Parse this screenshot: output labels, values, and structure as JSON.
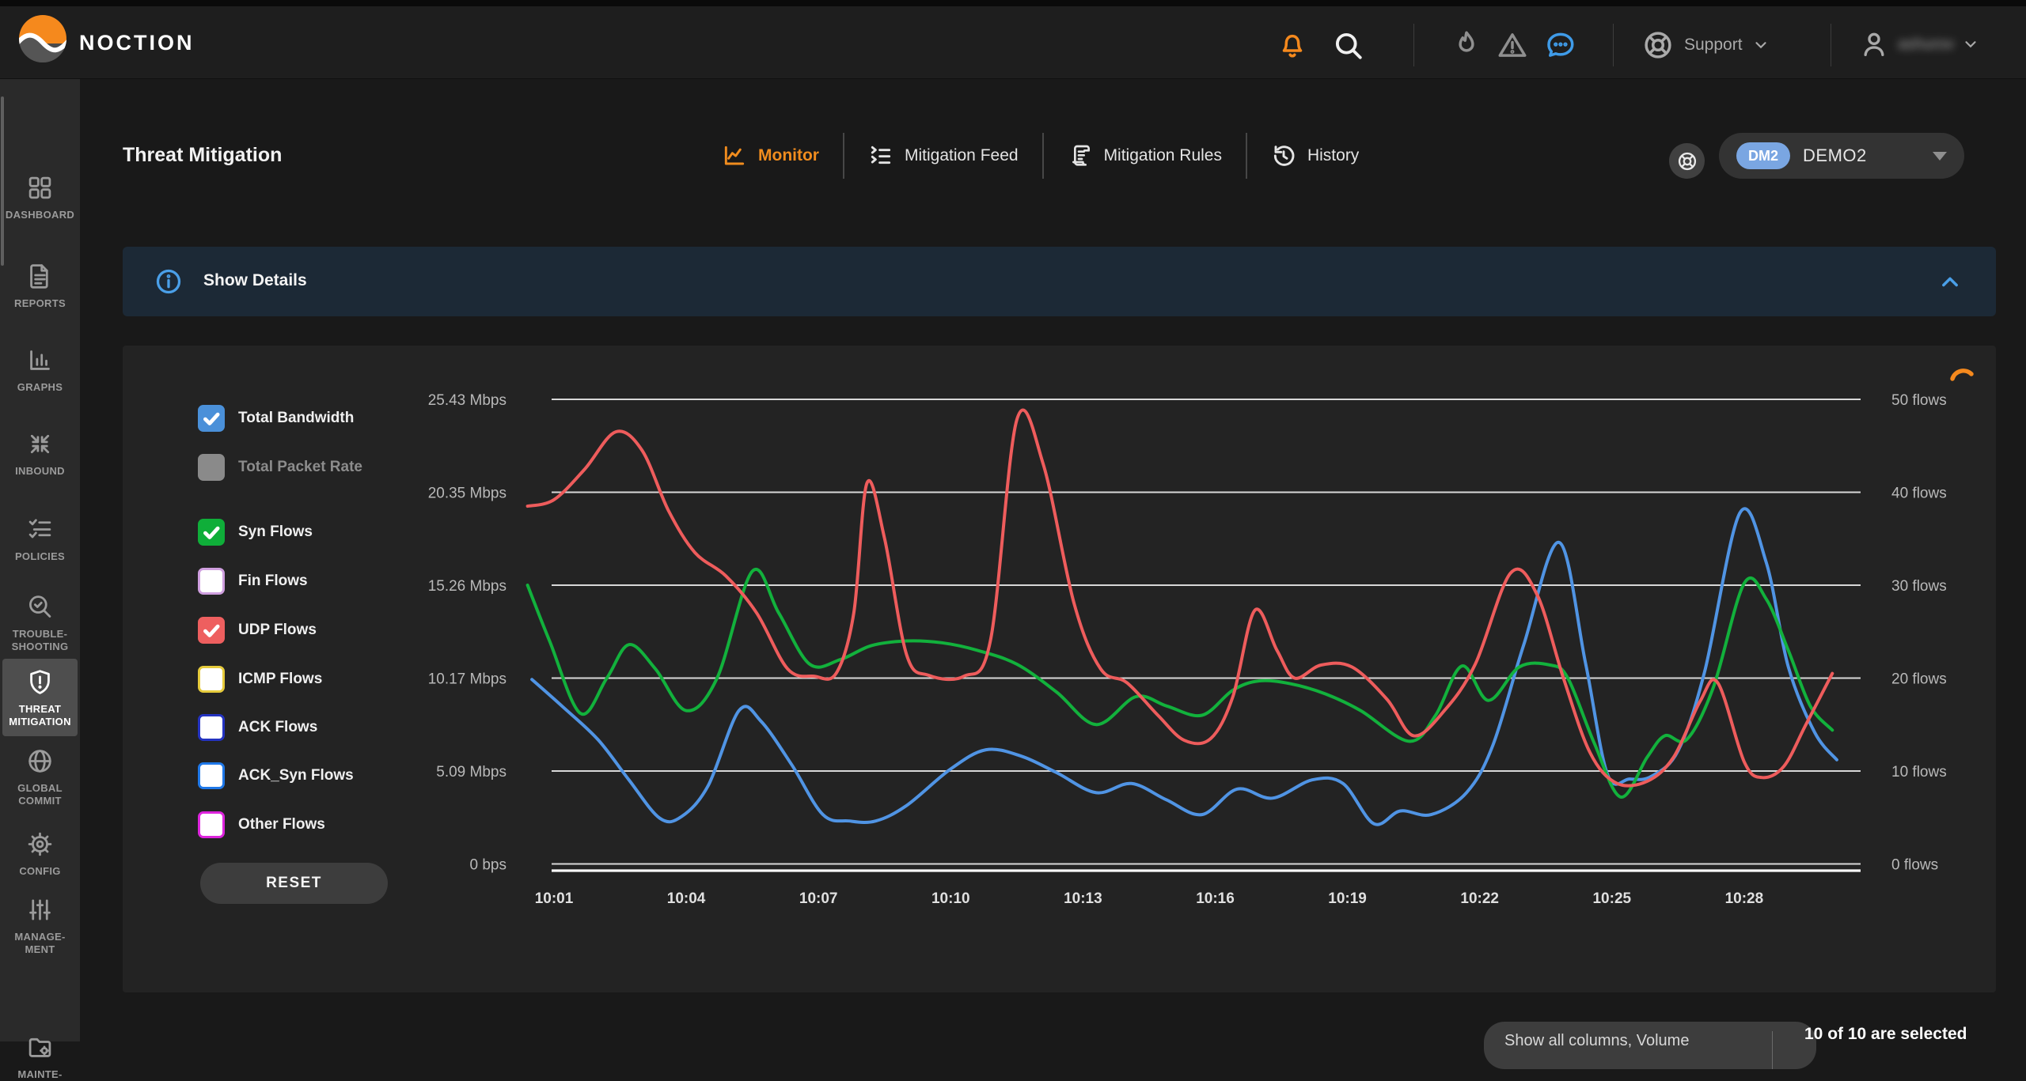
{
  "topbar": {
    "brand": "NOCTION",
    "icons": [
      "bell-icon",
      "search-icon",
      "flame-icon",
      "warning-icon",
      "chat-icon"
    ],
    "support_label": "Support",
    "user_name": "ashurov",
    "accent_orange": "#f5891d",
    "chat_blue": "#3f9be8"
  },
  "sidebar": {
    "items": [
      {
        "icon": "grid-icon",
        "label_lines": [
          "DASHBOARD"
        ],
        "active": false
      },
      {
        "icon": "report-icon",
        "label_lines": [
          "REPORTS"
        ],
        "active": false
      },
      {
        "icon": "bar-chart-icon",
        "label_lines": [
          "GRAPHS"
        ],
        "active": false
      },
      {
        "icon": "inbound-arrows-icon",
        "label_lines": [
          "INBOUND"
        ],
        "active": false
      },
      {
        "icon": "checklist-icon",
        "label_lines": [
          "POLICIES"
        ],
        "active": false
      },
      {
        "icon": "search-check-icon",
        "label_lines": [
          "TROUBLE-",
          "SHOOTING"
        ],
        "active": false
      },
      {
        "icon": "shield-alert-icon",
        "label_lines": [
          "THREAT",
          "MITIGATION"
        ],
        "active": true
      },
      {
        "icon": "globe-icon",
        "label_lines": [
          "GLOBAL",
          "COMMIT"
        ],
        "active": false
      },
      {
        "icon": "gear-icon",
        "label_lines": [
          "CONFIG"
        ],
        "active": false
      },
      {
        "icon": "sliders-icon",
        "label_lines": [
          "MANAGE-",
          "MENT"
        ],
        "active": false
      },
      {
        "icon": "folder-gear-icon",
        "label_lines": [
          "MAINTE-"
        ],
        "active": false
      }
    ]
  },
  "header": {
    "title": "Threat Mitigation",
    "tabs": [
      {
        "label": "Monitor",
        "icon": "monitor-chart-icon",
        "active": true
      },
      {
        "label": "Mitigation Feed",
        "icon": "feed-list-icon",
        "active": false
      },
      {
        "label": "Mitigation Rules",
        "icon": "rules-scroll-icon",
        "active": false
      },
      {
        "label": "History",
        "icon": "history-clock-icon",
        "active": false
      }
    ],
    "device": {
      "badge": "DM2",
      "name": "DEMO2"
    },
    "active_tab_color": "#f08c1e"
  },
  "details_bar": {
    "label": "Show Details",
    "accent": "#4a9fe8",
    "state": "expanded"
  },
  "legend": {
    "items": [
      {
        "label": "Total Bandwidth",
        "checked": true,
        "style": "fill",
        "color": "#4a90d9"
      },
      {
        "label": "Total Packet Rate",
        "checked": false,
        "style": "muted",
        "color": "#8a8a8a"
      },
      {
        "label": "Syn Flows",
        "checked": true,
        "style": "fill",
        "color": "#0fae39"
      },
      {
        "label": "Fin Flows",
        "checked": false,
        "style": "outline",
        "color": "#cf9fdf"
      },
      {
        "label": "UDP Flows",
        "checked": true,
        "style": "fill",
        "color": "#ee5f5f"
      },
      {
        "label": "ICMP Flows",
        "checked": false,
        "style": "outline",
        "color": "#e6cb3c"
      },
      {
        "label": "ACK Flows",
        "checked": false,
        "style": "outline",
        "color": "#2433c0"
      },
      {
        "label": "ACK_Syn Flows",
        "checked": false,
        "style": "outline",
        "color": "#1f78e8"
      },
      {
        "label": "Other Flows",
        "checked": false,
        "style": "outline",
        "color": "#dd25dd"
      }
    ],
    "reset_label": "RESET"
  },
  "chart_data": {
    "type": "line",
    "grid": true,
    "x_axis": {
      "tick_labels": [
        "10:01",
        "10:04",
        "10:07",
        "10:10",
        "10:13",
        "10:16",
        "10:19",
        "10:22",
        "10:25",
        "10:28"
      ],
      "tick_minutes": [
        1,
        4,
        7,
        10,
        13,
        16,
        19,
        22,
        25,
        28
      ],
      "range_minutes": [
        0.4,
        30.2
      ]
    },
    "left_axis": {
      "unit": "Mbps",
      "labels": [
        "25.43 Mbps",
        "20.35 Mbps",
        "15.26 Mbps",
        "10.17 Mbps",
        "5.09 Mbps",
        "0 bps"
      ],
      "values": [
        25.43,
        20.35,
        15.26,
        10.17,
        5.09,
        0
      ]
    },
    "right_axis": {
      "unit": "flows",
      "labels": [
        "50 flows",
        "40 flows",
        "30 flows",
        "20 flows",
        "10 flows",
        "0 flows"
      ],
      "values": [
        50,
        40,
        30,
        20,
        10,
        0
      ]
    },
    "series": [
      {
        "name": "Total Bandwidth",
        "axis": "left",
        "unit": "Mbps",
        "color": "#5094e4",
        "points": [
          [
            0.5,
            10.1
          ],
          [
            1.2,
            8.6
          ],
          [
            2.0,
            6.8
          ],
          [
            2.7,
            4.6
          ],
          [
            3.4,
            2.5
          ],
          [
            3.9,
            2.6
          ],
          [
            4.5,
            4.3
          ],
          [
            5.2,
            8.4
          ],
          [
            5.7,
            7.8
          ],
          [
            6.4,
            5.4
          ],
          [
            7.1,
            2.7
          ],
          [
            7.7,
            2.35
          ],
          [
            8.3,
            2.35
          ],
          [
            9.0,
            3.2
          ],
          [
            10.0,
            5.2
          ],
          [
            10.8,
            6.25
          ],
          [
            11.6,
            5.9
          ],
          [
            12.4,
            5.0
          ],
          [
            13.3,
            3.9
          ],
          [
            14.1,
            4.4
          ],
          [
            14.9,
            3.5
          ],
          [
            15.7,
            2.7
          ],
          [
            16.5,
            4.1
          ],
          [
            17.3,
            3.6
          ],
          [
            18.2,
            4.6
          ],
          [
            18.9,
            4.4
          ],
          [
            19.6,
            2.2
          ],
          [
            20.2,
            2.9
          ],
          [
            20.9,
            2.7
          ],
          [
            21.7,
            3.9
          ],
          [
            22.3,
            6.5
          ],
          [
            23.0,
            12.0
          ],
          [
            23.8,
            17.6
          ],
          [
            24.4,
            11.0
          ],
          [
            24.9,
            4.9
          ],
          [
            25.4,
            4.65
          ],
          [
            25.9,
            4.8
          ],
          [
            26.5,
            6.2
          ],
          [
            27.1,
            10.5
          ],
          [
            27.9,
            19.2
          ],
          [
            28.5,
            16.5
          ],
          [
            29.0,
            10.8
          ],
          [
            29.6,
            7.2
          ],
          [
            30.1,
            5.7
          ]
        ]
      },
      {
        "name": "Syn Flows",
        "axis": "right",
        "unit": "flows",
        "color": "#12b13c",
        "points": [
          [
            0.4,
            30.0
          ],
          [
            0.9,
            24.0
          ],
          [
            1.6,
            16.2
          ],
          [
            2.2,
            20.0
          ],
          [
            2.7,
            23.6
          ],
          [
            3.3,
            21.0
          ],
          [
            4.0,
            16.5
          ],
          [
            4.7,
            20.0
          ],
          [
            5.5,
            31.5
          ],
          [
            6.1,
            27.0
          ],
          [
            6.8,
            21.5
          ],
          [
            7.5,
            22.0
          ],
          [
            8.2,
            23.5
          ],
          [
            9.0,
            24.0
          ],
          [
            9.8,
            23.8
          ],
          [
            10.6,
            23.0
          ],
          [
            11.5,
            21.5
          ],
          [
            12.4,
            18.5
          ],
          [
            13.3,
            15.0
          ],
          [
            14.2,
            18.0
          ],
          [
            14.9,
            17.0
          ],
          [
            15.7,
            16.0
          ],
          [
            16.4,
            18.7
          ],
          [
            17.0,
            19.7
          ],
          [
            17.7,
            19.4
          ],
          [
            18.5,
            18.3
          ],
          [
            19.3,
            16.5
          ],
          [
            20.4,
            13.2
          ],
          [
            21.0,
            16.0
          ],
          [
            21.6,
            21.3
          ],
          [
            22.2,
            17.6
          ],
          [
            22.9,
            21.2
          ],
          [
            23.6,
            21.4
          ],
          [
            24.0,
            20.0
          ],
          [
            24.6,
            13.0
          ],
          [
            25.2,
            7.2
          ],
          [
            25.8,
            11.5
          ],
          [
            26.2,
            13.8
          ],
          [
            26.7,
            13.4
          ],
          [
            27.3,
            19.0
          ],
          [
            28.0,
            30.2
          ],
          [
            28.5,
            28.5
          ],
          [
            29.0,
            23.0
          ],
          [
            29.5,
            17.0
          ],
          [
            30.0,
            14.4
          ]
        ]
      },
      {
        "name": "UDP Flows",
        "axis": "right",
        "unit": "flows",
        "color": "#ee5c5c",
        "points": [
          [
            0.4,
            38.5
          ],
          [
            1.0,
            39.2
          ],
          [
            1.7,
            42.5
          ],
          [
            2.4,
            46.5
          ],
          [
            3.0,
            44.5
          ],
          [
            3.6,
            38.0
          ],
          [
            4.2,
            33.5
          ],
          [
            4.9,
            31.0
          ],
          [
            5.6,
            27.0
          ],
          [
            6.3,
            21.0
          ],
          [
            6.9,
            20.2
          ],
          [
            7.4,
            20.5
          ],
          [
            7.8,
            27.0
          ],
          [
            8.1,
            41.0
          ],
          [
            8.5,
            35.0
          ],
          [
            9.0,
            22.5
          ],
          [
            9.5,
            20.3
          ],
          [
            10.3,
            20.2
          ],
          [
            10.9,
            24.0
          ],
          [
            11.5,
            47.8
          ],
          [
            12.1,
            43.0
          ],
          [
            12.8,
            28.0
          ],
          [
            13.4,
            21.0
          ],
          [
            14.0,
            19.5
          ],
          [
            14.7,
            16.0
          ],
          [
            15.3,
            13.3
          ],
          [
            15.9,
            13.5
          ],
          [
            16.4,
            18.0
          ],
          [
            16.9,
            27.3
          ],
          [
            17.4,
            23.0
          ],
          [
            17.8,
            20.0
          ],
          [
            18.4,
            21.4
          ],
          [
            19.1,
            21.2
          ],
          [
            19.9,
            17.7
          ],
          [
            20.5,
            13.8
          ],
          [
            21.2,
            16.5
          ],
          [
            21.9,
            21.5
          ],
          [
            22.7,
            31.3
          ],
          [
            23.3,
            29.0
          ],
          [
            23.9,
            20.0
          ],
          [
            24.5,
            12.0
          ],
          [
            25.1,
            8.7
          ],
          [
            25.8,
            8.9
          ],
          [
            26.4,
            11.5
          ],
          [
            27.0,
            17.5
          ],
          [
            27.4,
            19.5
          ],
          [
            28.0,
            11.0
          ],
          [
            28.4,
            9.3
          ],
          [
            28.9,
            10.5
          ],
          [
            29.4,
            15.0
          ],
          [
            30.0,
            20.5
          ]
        ]
      }
    ],
    "loading_spinner_color": "#f5891d"
  },
  "footer": {
    "columns_button_label": "Show all columns, Volume",
    "selection_text": "10 of 10 are selected"
  }
}
